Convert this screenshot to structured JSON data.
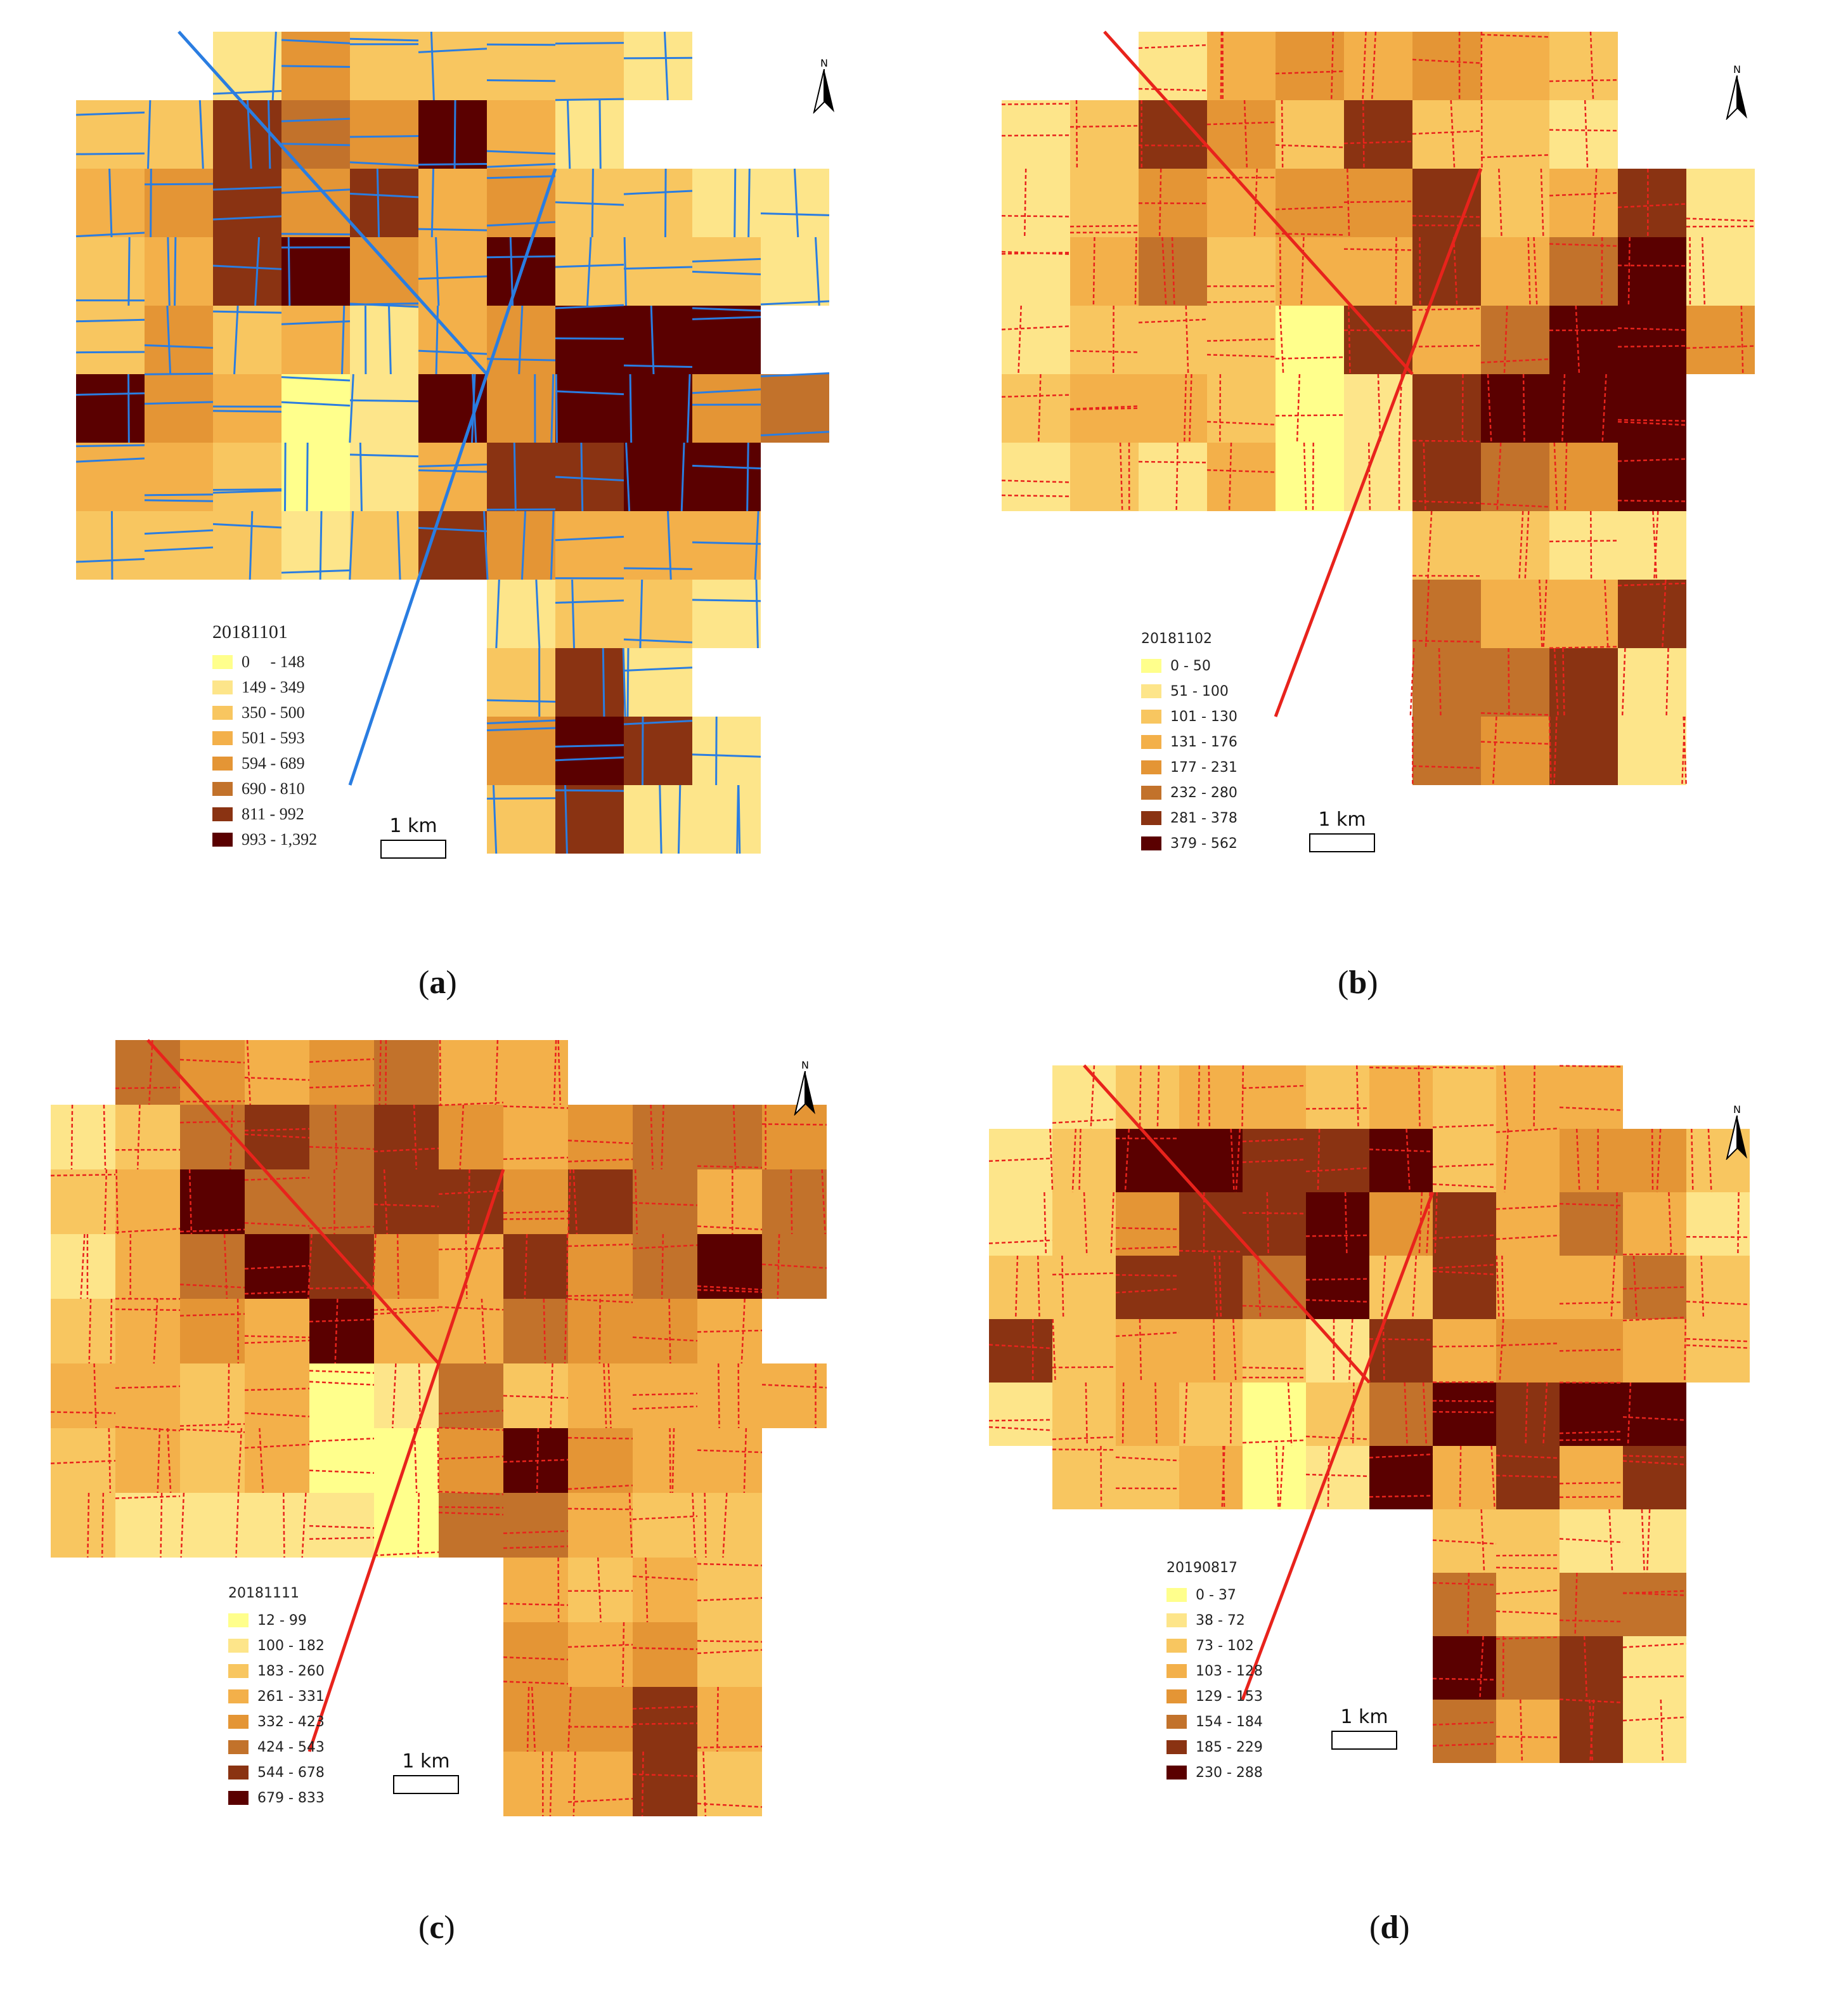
{
  "panels": [
    {
      "id": "a",
      "caption_letter": "a",
      "legend_title": "20181101",
      "legend_font": "serif",
      "road_color": "#2a7de1",
      "classes": [
        {
          "label": "0     - 148",
          "color": "#ffff8c"
        },
        {
          "label": "149 - 349",
          "color": "#fde58a"
        },
        {
          "label": "350 - 500",
          "color": "#f8c660"
        },
        {
          "label": "501 - 593",
          "color": "#f3b04a"
        },
        {
          "label": "594 - 689",
          "color": "#e49535"
        },
        {
          "label": "690 - 810",
          "color": "#c2722b"
        },
        {
          "label": "811 - 992",
          "color": "#8a3312"
        },
        {
          "label": "993 - 1,392",
          "color": "#5a0000"
        }
      ],
      "scale_label": "1 km",
      "north_label": "N"
    },
    {
      "id": "b",
      "caption_letter": "b",
      "legend_title": "20181102",
      "legend_font": "sans",
      "road_color": "#e8231c",
      "classes": [
        {
          "label": "0 - 50",
          "color": "#ffff8c"
        },
        {
          "label": "51 - 100",
          "color": "#fde58a"
        },
        {
          "label": "101 - 130",
          "color": "#f8c660"
        },
        {
          "label": "131 - 176",
          "color": "#f3b04a"
        },
        {
          "label": "177 - 231",
          "color": "#e49535"
        },
        {
          "label": "232 - 280",
          "color": "#c2722b"
        },
        {
          "label": "281 - 378",
          "color": "#8a3312"
        },
        {
          "label": "379 - 562",
          "color": "#5a0000"
        }
      ],
      "scale_label": "1 km",
      "north_label": "N"
    },
    {
      "id": "c",
      "caption_letter": "c",
      "legend_title": "20181111",
      "legend_font": "sans",
      "road_color": "#e8231c",
      "classes": [
        {
          "label": "12 - 99",
          "color": "#ffff8c"
        },
        {
          "label": "100 - 182",
          "color": "#fde58a"
        },
        {
          "label": "183 - 260",
          "color": "#f8c660"
        },
        {
          "label": "261 - 331",
          "color": "#f3b04a"
        },
        {
          "label": "332 - 423",
          "color": "#e49535"
        },
        {
          "label": "424 - 543",
          "color": "#c2722b"
        },
        {
          "label": "544 - 678",
          "color": "#8a3312"
        },
        {
          "label": "679 - 833",
          "color": "#5a0000"
        }
      ],
      "scale_label": "1 km",
      "north_label": "N"
    },
    {
      "id": "d",
      "caption_letter": "d",
      "legend_title": "20190817",
      "legend_font": "sans",
      "road_color": "#e8231c",
      "classes": [
        {
          "label": "0 - 37",
          "color": "#ffff8c"
        },
        {
          "label": "38 - 72",
          "color": "#fde58a"
        },
        {
          "label": "73 - 102",
          "color": "#f8c660"
        },
        {
          "label": "103 - 128",
          "color": "#f3b04a"
        },
        {
          "label": "129 - 153",
          "color": "#e49535"
        },
        {
          "label": "154 - 184",
          "color": "#c2722b"
        },
        {
          "label": "185 - 229",
          "color": "#8a3312"
        },
        {
          "label": "230 - 288",
          "color": "#5a0000"
        }
      ],
      "scale_label": "1 km",
      "north_label": "N"
    }
  ]
}
